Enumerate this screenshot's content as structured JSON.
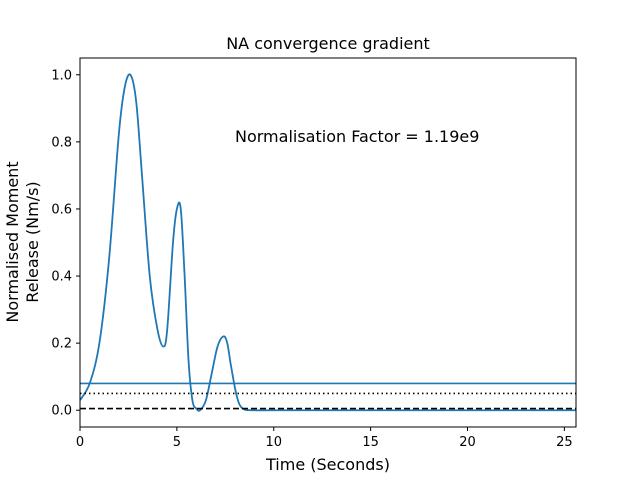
{
  "chart_data": {
    "type": "line",
    "title": "NA convergence gradient",
    "xlabel": "Time (Seconds)",
    "ylabel_lines": [
      "Normalised Moment",
      "Release (Nm/s)"
    ],
    "xlim": [
      0,
      25.6
    ],
    "ylim": [
      -0.05,
      1.05
    ],
    "xticks": [
      0,
      5,
      10,
      15,
      20,
      25
    ],
    "yticks": [
      0.0,
      0.2,
      0.4,
      0.6,
      0.8,
      1.0
    ],
    "xtick_labels": [
      "0",
      "5",
      "10",
      "15",
      "20",
      "25"
    ],
    "ytick_labels": [
      "0.0",
      "0.2",
      "0.4",
      "0.6",
      "0.8",
      "1.0"
    ],
    "annotation": "Normalisation Factor = 1.19e9",
    "grid": false,
    "series": [
      {
        "style": "solid",
        "color": "#1f77b4",
        "x": [
          0,
          0.5,
          1.0,
          1.5,
          2.0,
          2.3,
          2.6,
          2.9,
          3.2,
          3.6,
          4.0,
          4.3,
          4.5,
          4.8,
          5.0,
          5.2,
          5.4,
          5.6,
          5.8,
          6.0,
          6.2,
          6.5,
          6.8,
          7.1,
          7.4,
          7.6,
          7.8,
          8.1,
          8.4,
          9.0,
          10,
          15,
          20,
          25.6
        ],
        "y": [
          0.03,
          0.08,
          0.2,
          0.45,
          0.82,
          0.96,
          1.0,
          0.92,
          0.7,
          0.4,
          0.24,
          0.19,
          0.24,
          0.5,
          0.6,
          0.6,
          0.4,
          0.15,
          0.03,
          0.005,
          0.0,
          0.03,
          0.11,
          0.19,
          0.22,
          0.2,
          0.13,
          0.04,
          0.005,
          0.0,
          0.0,
          0.0,
          0.0,
          0.0
        ]
      },
      {
        "style": "solid-hline",
        "color": "#1f77b4",
        "value": 0.08
      },
      {
        "style": "dotted-hline",
        "color": "#000000",
        "value": 0.05
      },
      {
        "style": "dashed-hline",
        "color": "#000000",
        "value": 0.005
      }
    ]
  }
}
